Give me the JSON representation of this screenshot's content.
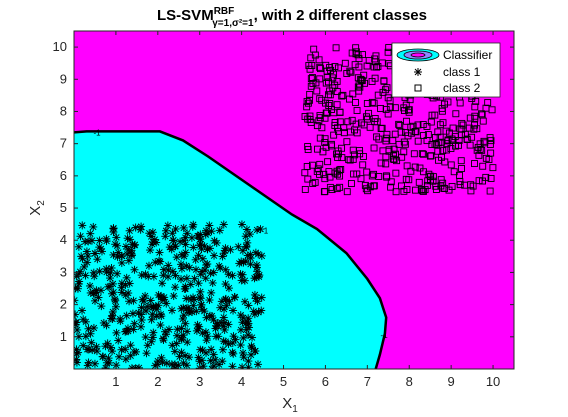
{
  "chart_data": {
    "type": "scatter",
    "title": {
      "prefix": "LS-SVM",
      "superscript": "RBF",
      "subscript": "γ=1,σ²=1",
      "suffix": ", with 2 different classes"
    },
    "xlabel": {
      "base": "X",
      "sub": "1"
    },
    "ylabel": {
      "base": "X",
      "sub": "2"
    },
    "xlim": [
      0,
      10.5
    ],
    "ylim": [
      0,
      10.5
    ],
    "xticks": [
      1,
      2,
      3,
      4,
      5,
      6,
      7,
      8,
      9,
      10
    ],
    "yticks": [
      1,
      2,
      3,
      4,
      5,
      6,
      7,
      8,
      9,
      10
    ],
    "grid": false,
    "legend_position": "top-right",
    "colors": {
      "class1_region": "#00ffff",
      "class2_region": "#ff00ff",
      "boundary": "#000000",
      "markers": "#000000"
    },
    "legend": [
      {
        "label": "Classifier",
        "marker": "contour"
      },
      {
        "label": "class 1",
        "marker": "asterisk"
      },
      {
        "label": "class 2",
        "marker": "square"
      }
    ],
    "decision_boundary": {
      "level_label": "-1",
      "points": [
        [
          0,
          7.35
        ],
        [
          0.3,
          7.38
        ],
        [
          1.0,
          7.38
        ],
        [
          2.05,
          7.38
        ],
        [
          2.6,
          7.1
        ],
        [
          3.2,
          6.6
        ],
        [
          4.2,
          5.7
        ],
        [
          5.2,
          4.8
        ],
        [
          5.8,
          4.35
        ],
        [
          6.5,
          3.6
        ],
        [
          7.0,
          2.8
        ],
        [
          7.3,
          2.2
        ],
        [
          7.45,
          1.6
        ],
        [
          7.42,
          1.1
        ],
        [
          7.3,
          0.45
        ],
        [
          7.2,
          0
        ]
      ],
      "label_positions": [
        [
          0.55,
          7.35
        ],
        [
          4.55,
          4.3
        ],
        [
          7.4,
          1.05
        ]
      ]
    },
    "series": [
      {
        "name": "class 1",
        "marker": "asterisk",
        "x_range": [
          0.0,
          4.5
        ],
        "y_range": [
          0.0,
          4.5
        ],
        "count": 500
      },
      {
        "name": "class 2",
        "marker": "square",
        "x_range": [
          5.5,
          10.0
        ],
        "y_range": [
          5.5,
          10.0
        ],
        "count": 500
      }
    ]
  }
}
